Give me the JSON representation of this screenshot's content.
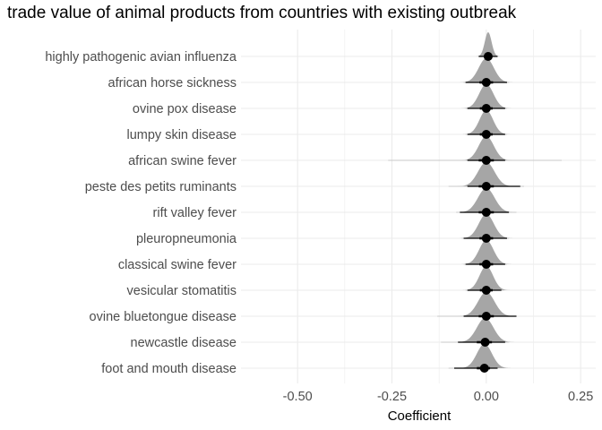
{
  "chart_data": {
    "type": "ridge-pointrange",
    "title": "trade value of animal products from countries with existing outbreak",
    "xlabel": "Coefficient",
    "ylabel": "",
    "xlim": [
      -0.65,
      0.29
    ],
    "xticks": [
      -0.5,
      -0.25,
      0.0,
      0.25
    ],
    "xtick_labels": [
      "-0.50",
      "-0.25",
      "0.00",
      "0.25"
    ],
    "grid": true,
    "point_color": "#000000",
    "density_color": "#a6a6a6",
    "grid_color": "#ebebeb",
    "categories": [
      "highly pathogenic avian influenza",
      "african horse sickness",
      "ovine pox disease",
      "lumpy skin disease",
      "african swine fever",
      "peste des petits ruminants",
      "rift valley fever",
      "pleuropneumonia",
      "classical swine fever",
      "vesicular stomatitis",
      "ovine bluetongue disease",
      "newcastle disease",
      "foot and mouth disease"
    ],
    "estimates": [
      {
        "category": "highly pathogenic avian influenza",
        "value": 0.005,
        "ci66": [
          -0.005,
          0.015
        ],
        "ci95": [
          -0.02,
          0.03
        ],
        "tails": [
          -0.02,
          0.03
        ],
        "spread": 0.009
      },
      {
        "category": "african horse sickness",
        "value": 0.0,
        "ci66": [
          -0.018,
          0.018
        ],
        "ci95": [
          -0.055,
          0.055
        ],
        "tails": [
          -0.06,
          0.06
        ],
        "spread": 0.02
      },
      {
        "category": "ovine pox disease",
        "value": 0.0,
        "ci66": [
          -0.017,
          0.017
        ],
        "ci95": [
          -0.05,
          0.05
        ],
        "tails": [
          -0.055,
          0.055
        ],
        "spread": 0.019
      },
      {
        "category": "lumpy skin disease",
        "value": 0.0,
        "ci66": [
          -0.017,
          0.017
        ],
        "ci95": [
          -0.05,
          0.05
        ],
        "tails": [
          -0.055,
          0.055
        ],
        "spread": 0.018
      },
      {
        "category": "african swine fever",
        "value": 0.0,
        "ci66": [
          -0.02,
          0.02
        ],
        "ci95": [
          -0.05,
          0.05
        ],
        "tails": [
          -0.26,
          0.2
        ],
        "spread": 0.02
      },
      {
        "category": "peste des petits ruminants",
        "value": 0.0,
        "ci66": [
          -0.02,
          0.02
        ],
        "ci95": [
          -0.05,
          0.09
        ],
        "tails": [
          -0.1,
          0.1
        ],
        "spread": 0.022
      },
      {
        "category": "rift valley fever",
        "value": 0.0,
        "ci66": [
          -0.02,
          0.02
        ],
        "ci95": [
          -0.07,
          0.06
        ],
        "tails": [
          -0.08,
          0.08
        ],
        "spread": 0.022
      },
      {
        "category": "pleuropneumonia",
        "value": 0.0,
        "ci66": [
          -0.018,
          0.018
        ],
        "ci95": [
          -0.06,
          0.055
        ],
        "tails": [
          -0.065,
          0.06
        ],
        "spread": 0.02
      },
      {
        "category": "classical swine fever",
        "value": 0.0,
        "ci66": [
          -0.018,
          0.018
        ],
        "ci95": [
          -0.055,
          0.05
        ],
        "tails": [
          -0.06,
          0.055
        ],
        "spread": 0.019
      },
      {
        "category": "vesicular stomatitis",
        "value": 0.0,
        "ci66": [
          -0.017,
          0.017
        ],
        "ci95": [
          -0.05,
          0.04
        ],
        "tails": [
          -0.055,
          0.045
        ],
        "spread": 0.018
      },
      {
        "category": "ovine bluetongue disease",
        "value": 0.0,
        "ci66": [
          -0.02,
          0.02
        ],
        "ci95": [
          -0.06,
          0.08
        ],
        "tails": [
          -0.13,
          0.08
        ],
        "spread": 0.022
      },
      {
        "category": "newcastle disease",
        "value": -0.003,
        "ci66": [
          -0.025,
          0.015
        ],
        "ci95": [
          -0.075,
          0.05
        ],
        "tails": [
          -0.12,
          0.06
        ],
        "spread": 0.022
      },
      {
        "category": "foot and mouth disease",
        "value": -0.005,
        "ci66": [
          -0.025,
          0.01
        ],
        "ci95": [
          -0.085,
          0.03
        ],
        "tails": [
          -0.1,
          0.03
        ],
        "spread": 0.02
      }
    ]
  }
}
